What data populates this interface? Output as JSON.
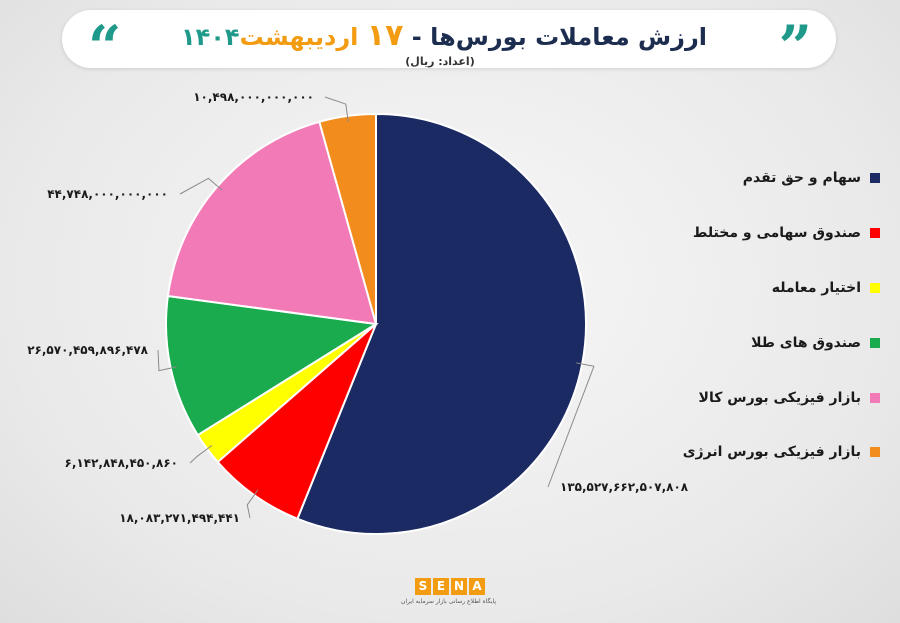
{
  "header": {
    "title_main": "ارزش معاملات بورس‌ها - ",
    "title_day": "۱۷",
    "title_month": " اردیبهشت",
    "title_year": "۱۴۰۴",
    "subtitle": "(اعداد: ریال)",
    "quote_left": "“",
    "quote_right": "”",
    "accent_teal": "#1f9a8a",
    "accent_orange": "#f39c12",
    "title_color": "#1d2d4f"
  },
  "chart_data": {
    "type": "pie",
    "title": "ارزش معاملات بورس‌ها - ۱۷ اردیبهشت ۱۴۰۴",
    "unit_label": "(اعداد: ریال)",
    "start_angle": "12 o'clock, clockwise",
    "slices": [
      {
        "name": "سهام و حق تقدم",
        "value": 135527662507808,
        "label": "۱۳۵,۵۲۷,۶۶۲,۵۰۷,۸۰۸",
        "color": "#1b2a63"
      },
      {
        "name": "صندوق سهامی و مختلط",
        "value": 18083271494441,
        "label": "۱۸,۰۸۳,۲۷۱,۴۹۴,۴۴۱",
        "color": "#ff0000"
      },
      {
        "name": "اختیار معامله",
        "value": 6142848450860,
        "label": "۶,۱۴۲,۸۴۸,۴۵۰,۸۶۰",
        "color": "#ffff00"
      },
      {
        "name": "صندوق های طلا",
        "value": 26570459896478,
        "label": "۲۶,۵۷۰,۴۵۹,۸۹۶,۴۷۸",
        "color": "#1aab4f"
      },
      {
        "name": "بازار فیزیکی بورس کالا",
        "value": 44748000000000,
        "label": "۴۴,۷۴۸,۰۰۰,۰۰۰,۰۰۰",
        "color": "#f27ab6"
      },
      {
        "name": "بازار فیزیکی بورس انرژی",
        "value": 10498000000000,
        "label": "۱۰,۴۹۸,۰۰۰,۰۰۰,۰۰۰",
        "color": "#f28c1c"
      }
    ],
    "legend_position": "right"
  },
  "legend": {
    "items": [
      {
        "label": "سهام و حق تقدم",
        "color": "#1b2a63"
      },
      {
        "label": "صندوق سهامی و مختلط",
        "color": "#ff0000"
      },
      {
        "label": "اختیار معامله",
        "color": "#ffff00"
      },
      {
        "label": "صندوق های طلا",
        "color": "#1aab4f"
      },
      {
        "label": "بازار فیزیکی بورس کالا",
        "color": "#f27ab6"
      },
      {
        "label": "بازار فیزیکی بورس انرژی",
        "color": "#f28c1c"
      }
    ]
  },
  "logo": {
    "letters": [
      "S",
      "E",
      "N",
      "A"
    ],
    "tagline": "پایگاه اطلاع رسانی بازار سرمایه ایران",
    "color": "#f39c12"
  }
}
